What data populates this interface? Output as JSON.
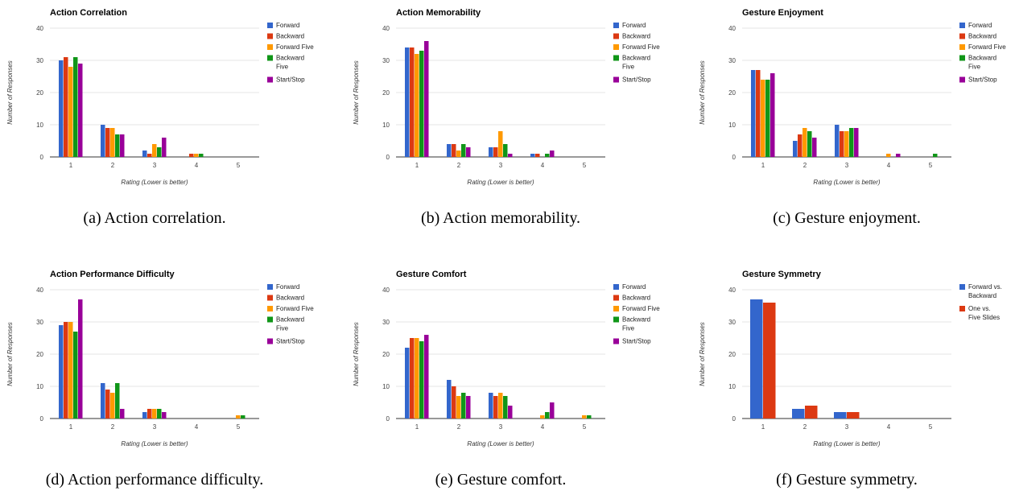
{
  "colors": {
    "forward": "#3366cc",
    "backward": "#dc3912",
    "forward_five": "#ff9900",
    "backward_five": "#109618",
    "start_stop": "#990099"
  },
  "chart_data": [
    {
      "type": "bar",
      "title": "Action Correlation",
      "caption": "(a) Action correlation.",
      "xlabel": "Rating (Lower is better)",
      "ylabel": "Number of Responses",
      "categories": [
        "1",
        "2",
        "3",
        "4",
        "5"
      ],
      "ylim": [
        0,
        40
      ],
      "yticks": [
        0,
        10,
        20,
        30,
        40
      ],
      "grid": true,
      "legend_position": "right",
      "series": [
        {
          "name": "Forward",
          "color": "#3366cc",
          "values": [
            30,
            10,
            2,
            0,
            0
          ]
        },
        {
          "name": "Backward",
          "color": "#dc3912",
          "values": [
            31,
            9,
            1,
            1,
            0
          ]
        },
        {
          "name": "Forward Five",
          "color": "#ff9900",
          "values": [
            28,
            9,
            4,
            1,
            0
          ]
        },
        {
          "name": "Backward Five",
          "color": "#109618",
          "values": [
            31,
            7,
            3,
            1,
            0
          ]
        },
        {
          "name": "Start/Stop",
          "color": "#990099",
          "values": [
            29,
            7,
            6,
            0,
            0
          ]
        }
      ]
    },
    {
      "type": "bar",
      "title": "Action Memorability",
      "caption": "(b) Action memorability.",
      "xlabel": "Rating (Lower is better)",
      "ylabel": "Number of Responses",
      "categories": [
        "1",
        "2",
        "3",
        "4",
        "5"
      ],
      "ylim": [
        0,
        40
      ],
      "yticks": [
        0,
        10,
        20,
        30,
        40
      ],
      "grid": true,
      "legend_position": "right",
      "series": [
        {
          "name": "Forward",
          "color": "#3366cc",
          "values": [
            34,
            4,
            3,
            1,
            0
          ]
        },
        {
          "name": "Backward",
          "color": "#dc3912",
          "values": [
            34,
            4,
            3,
            1,
            0
          ]
        },
        {
          "name": "Forward Five",
          "color": "#ff9900",
          "values": [
            32,
            2,
            8,
            0,
            0
          ]
        },
        {
          "name": "Backward Five",
          "color": "#109618",
          "values": [
            33,
            4,
            4,
            1,
            0
          ]
        },
        {
          "name": "Start/Stop",
          "color": "#990099",
          "values": [
            36,
            3,
            1,
            2,
            0
          ]
        }
      ]
    },
    {
      "type": "bar",
      "title": "Gesture Enjoyment",
      "caption": "(c) Gesture enjoyment.",
      "xlabel": "Rating (Lower is better)",
      "ylabel": "Number of Responses",
      "categories": [
        "1",
        "2",
        "3",
        "4",
        "5"
      ],
      "ylim": [
        0,
        40
      ],
      "yticks": [
        0,
        10,
        20,
        30,
        40
      ],
      "grid": true,
      "legend_position": "right",
      "series": [
        {
          "name": "Forward",
          "color": "#3366cc",
          "values": [
            27,
            5,
            10,
            0,
            0
          ]
        },
        {
          "name": "Backward",
          "color": "#dc3912",
          "values": [
            27,
            7,
            8,
            0,
            0
          ]
        },
        {
          "name": "Forward Five",
          "color": "#ff9900",
          "values": [
            24,
            9,
            8,
            1,
            0
          ]
        },
        {
          "name": "Backward Five",
          "color": "#109618",
          "values": [
            24,
            8,
            9,
            0,
            1
          ]
        },
        {
          "name": "Start/Stop",
          "color": "#990099",
          "values": [
            26,
            6,
            9,
            1,
            0
          ]
        }
      ]
    },
    {
      "type": "bar",
      "title": "Action Performance Difficulty",
      "caption": "(d) Action performance difficulty.",
      "xlabel": "Rating (Lower is better)",
      "ylabel": "Number of Responses",
      "categories": [
        "1",
        "2",
        "3",
        "4",
        "5"
      ],
      "ylim": [
        0,
        40
      ],
      "yticks": [
        0,
        10,
        20,
        30,
        40
      ],
      "grid": true,
      "legend_position": "right",
      "series": [
        {
          "name": "Forward",
          "color": "#3366cc",
          "values": [
            29,
            11,
            2,
            0,
            0
          ]
        },
        {
          "name": "Backward",
          "color": "#dc3912",
          "values": [
            30,
            9,
            3,
            0,
            0
          ]
        },
        {
          "name": "Forward Five",
          "color": "#ff9900",
          "values": [
            30,
            8,
            3,
            0,
            1
          ]
        },
        {
          "name": "Backward Five",
          "color": "#109618",
          "values": [
            27,
            11,
            3,
            0,
            1
          ]
        },
        {
          "name": "Start/Stop",
          "color": "#990099",
          "values": [
            37,
            3,
            2,
            0,
            0
          ]
        }
      ]
    },
    {
      "type": "bar",
      "title": "Gesture Comfort",
      "caption": "(e) Gesture comfort.",
      "xlabel": "Rating (Lower is better)",
      "ylabel": "Number of Responses",
      "categories": [
        "1",
        "2",
        "3",
        "4",
        "5"
      ],
      "ylim": [
        0,
        40
      ],
      "yticks": [
        0,
        10,
        20,
        30,
        40
      ],
      "grid": true,
      "legend_position": "right",
      "series": [
        {
          "name": "Forward",
          "color": "#3366cc",
          "values": [
            22,
            12,
            8,
            0,
            0
          ]
        },
        {
          "name": "Backward",
          "color": "#dc3912",
          "values": [
            25,
            10,
            7,
            0,
            0
          ]
        },
        {
          "name": "Forward Five",
          "color": "#ff9900",
          "values": [
            25,
            7,
            8,
            1,
            1
          ]
        },
        {
          "name": "Backward Five",
          "color": "#109618",
          "values": [
            24,
            8,
            7,
            2,
            1
          ]
        },
        {
          "name": "Start/Stop",
          "color": "#990099",
          "values": [
            26,
            7,
            4,
            5,
            0
          ]
        }
      ]
    },
    {
      "type": "bar",
      "title": "Gesture Symmetry",
      "caption": "(f) Gesture symmetry.",
      "xlabel": "Rating (Lower is better)",
      "ylabel": "Number of Responses",
      "categories": [
        "1",
        "2",
        "3",
        "4",
        "5"
      ],
      "ylim": [
        0,
        40
      ],
      "yticks": [
        0,
        10,
        20,
        30,
        40
      ],
      "grid": true,
      "legend_position": "right",
      "series": [
        {
          "name": "Forward vs. Backward",
          "color": "#3366cc",
          "values": [
            37,
            3,
            2,
            0,
            0
          ]
        },
        {
          "name": "One vs. Five Slides",
          "color": "#dc3912",
          "values": [
            36,
            4,
            2,
            0,
            0
          ]
        }
      ]
    }
  ]
}
